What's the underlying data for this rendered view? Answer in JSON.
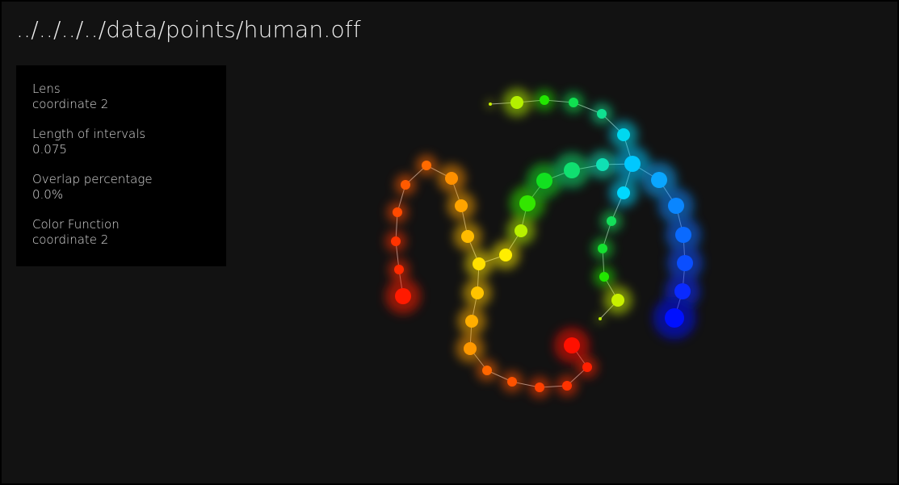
{
  "header": {
    "title": "../../../../data/points/human.off"
  },
  "params": [
    {
      "label": "Lens",
      "value": "coordinate 2"
    },
    {
      "label": "Length of intervals",
      "value": "0.075"
    },
    {
      "label": "Overlap percentage",
      "value": "0.0%"
    },
    {
      "label": "Color Function",
      "value": "coordinate 2"
    }
  ],
  "colors": {
    "background": "#121212",
    "panel": "#000000",
    "edge": "#9a9a9a"
  }
}
